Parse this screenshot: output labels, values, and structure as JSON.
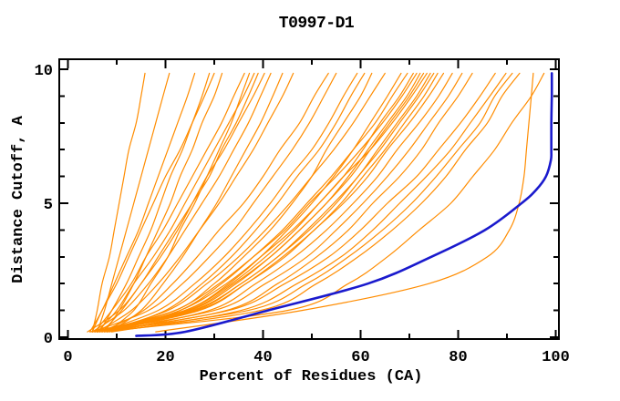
{
  "title": "T0997-D1",
  "colors": {
    "background": "#ffffff",
    "axis": "#000000",
    "model_line": "#ff8c00",
    "best_model_line": "#1a1acd"
  },
  "chart_data": {
    "type": "line",
    "title": "T0997-D1",
    "xlabel": "Percent of Residues (CA)",
    "ylabel": "Distance Cutoff, A",
    "xlim": [
      0,
      100
    ],
    "ylim": [
      0,
      10
    ],
    "grid": false,
    "legend": "none",
    "x_major_ticks": [
      0,
      20,
      40,
      60,
      80,
      100
    ],
    "x_minor_ticks": [
      10,
      30,
      50,
      70,
      90
    ],
    "y_major_ticks": [
      0,
      5,
      10
    ],
    "y_minor_ticks": [
      1,
      2,
      3,
      4,
      6,
      7,
      8,
      9
    ],
    "cutoffs": [
      0.2,
      1,
      2,
      3,
      4,
      5,
      6,
      7,
      8,
      9,
      9.85
    ],
    "series": [
      {
        "name": "model-01",
        "group": "model",
        "x": [
          5,
          6,
          7,
          8.5,
          9.5,
          10.5,
          11.5,
          12.5,
          14,
          15,
          15.8
        ]
      },
      {
        "name": "model-02",
        "group": "model",
        "x": [
          6,
          7.5,
          9,
          10.5,
          12,
          13.5,
          15,
          16.5,
          18,
          19.5,
          20.8
        ]
      },
      {
        "name": "model-03",
        "group": "model",
        "x": [
          4.5,
          7,
          9.5,
          12,
          14.5,
          16.5,
          18.5,
          20.5,
          22.5,
          24.5,
          26
        ]
      },
      {
        "name": "model-04",
        "group": "model",
        "x": [
          6.5,
          9,
          12,
          14.5,
          17,
          19,
          21,
          23.5,
          25.5,
          27.5,
          29
        ]
      },
      {
        "name": "model-05",
        "group": "model",
        "x": [
          5,
          7,
          10,
          12.5,
          15,
          17.5,
          20,
          23,
          25.5,
          28,
          30
        ]
      },
      {
        "name": "model-06",
        "group": "model",
        "x": [
          7.5,
          10.5,
          13.5,
          16,
          18.5,
          21,
          23,
          25.5,
          27.5,
          30,
          31.6
        ]
      },
      {
        "name": "model-07",
        "group": "model",
        "x": [
          5.5,
          9,
          13,
          16,
          19.5,
          22.5,
          25.5,
          28.5,
          31.5,
          34,
          36.2
        ]
      },
      {
        "name": "model-08",
        "group": "model",
        "x": [
          8,
          13.5,
          17,
          20.5,
          23,
          26,
          28.5,
          31,
          33.5,
          35.5,
          37.2
        ]
      },
      {
        "name": "model-09",
        "group": "model",
        "x": [
          6,
          10,
          13.5,
          17.5,
          21,
          24,
          27,
          30,
          33,
          36,
          38.2
        ]
      },
      {
        "name": "model-10",
        "group": "model",
        "x": [
          4,
          10.5,
          15,
          18.5,
          22,
          25.5,
          29,
          31.5,
          34.5,
          37,
          39
        ]
      },
      {
        "name": "model-11",
        "group": "model",
        "x": [
          7,
          11,
          15,
          19,
          22.5,
          25.5,
          28.5,
          32,
          35,
          38,
          40.3
        ]
      },
      {
        "name": "model-12",
        "group": "model",
        "x": [
          5,
          11.5,
          16.5,
          20.5,
          24,
          27.5,
          31,
          34,
          37,
          39.5,
          41.6
        ]
      },
      {
        "name": "model-13",
        "group": "model",
        "x": [
          8.5,
          15,
          19.5,
          23.5,
          27,
          30.5,
          33.5,
          36.5,
          39.5,
          42,
          44
        ]
      },
      {
        "name": "model-14",
        "group": "model",
        "x": [
          6,
          13,
          18.5,
          23,
          27,
          31,
          34.5,
          38,
          41,
          44,
          46.2
        ]
      },
      {
        "name": "model-15",
        "group": "model",
        "x": [
          7,
          15.5,
          21.5,
          26.5,
          31,
          36,
          40,
          43.5,
          47.5,
          50.5,
          53.4
        ]
      },
      {
        "name": "model-16",
        "group": "model",
        "x": [
          5,
          16.5,
          23.5,
          29,
          34,
          38,
          42,
          46,
          49.5,
          52.5,
          55
        ]
      },
      {
        "name": "model-17",
        "group": "model",
        "x": [
          6.5,
          18.5,
          26,
          32,
          37,
          41.5,
          45.5,
          50,
          53.5,
          56.5,
          59.3
        ]
      },
      {
        "name": "model-18",
        "group": "model",
        "x": [
          8,
          20,
          27.5,
          33.5,
          38.5,
          43,
          47,
          51.5,
          55,
          58,
          60.8
        ]
      },
      {
        "name": "model-19",
        "group": "model",
        "x": [
          5.5,
          22,
          30,
          36,
          41.5,
          46,
          50,
          53,
          56.5,
          60,
          62.3
        ]
      },
      {
        "name": "model-20",
        "group": "model",
        "x": [
          7,
          20.5,
          28.5,
          35,
          40.5,
          45.5,
          50,
          54.5,
          58.5,
          62,
          65
        ]
      },
      {
        "name": "model-21",
        "group": "model",
        "x": [
          6,
          24,
          33,
          39.5,
          45,
          50,
          54.5,
          58.5,
          62,
          65.5,
          68.3
        ]
      },
      {
        "name": "model-22",
        "group": "model",
        "x": [
          9,
          23,
          31.5,
          38,
          44,
          49,
          54,
          58.5,
          63,
          66.5,
          69.6
        ]
      },
      {
        "name": "model-23",
        "group": "model",
        "x": [
          5,
          24,
          33.5,
          40.5,
          46.5,
          51.5,
          56.5,
          60.5,
          64,
          68,
          70.8
        ]
      },
      {
        "name": "model-24",
        "group": "model",
        "x": [
          7.5,
          22,
          31,
          38,
          44.5,
          49.5,
          55,
          60,
          64.5,
          68.5,
          71.5
        ]
      },
      {
        "name": "model-25",
        "group": "model",
        "x": [
          6,
          25,
          34.5,
          41.5,
          47.5,
          53,
          57.5,
          61.5,
          65.5,
          69.5,
          72.2
        ]
      },
      {
        "name": "model-26",
        "group": "model",
        "x": [
          4.5,
          24.5,
          34,
          41.5,
          47.5,
          53,
          58,
          62,
          66,
          70,
          72.9
        ]
      },
      {
        "name": "model-27",
        "group": "model",
        "x": [
          8,
          23,
          32.5,
          39.5,
          46,
          51.5,
          56.5,
          62,
          66.5,
          70.5,
          73.6
        ]
      },
      {
        "name": "model-28",
        "group": "model",
        "x": [
          6.5,
          26,
          35.5,
          43,
          49,
          54.5,
          59.5,
          63.5,
          67.5,
          71.5,
          74.3
        ]
      },
      {
        "name": "model-29",
        "group": "model",
        "x": [
          5.5,
          25.5,
          35.5,
          43,
          49.5,
          55,
          59.5,
          64,
          68,
          72,
          75
        ]
      },
      {
        "name": "model-30",
        "group": "model",
        "x": [
          7,
          27,
          36.5,
          44,
          50.5,
          56,
          60.5,
          65,
          69,
          73,
          75.8
        ]
      },
      {
        "name": "model-31",
        "group": "model",
        "x": [
          6,
          26.5,
          36.5,
          44.5,
          50.5,
          56.5,
          61.5,
          65.5,
          70,
          74,
          77
        ]
      },
      {
        "name": "model-32",
        "group": "model",
        "x": [
          8.5,
          29,
          38.5,
          46.5,
          53,
          58.5,
          63.5,
          67.5,
          72,
          76,
          78.8
        ]
      },
      {
        "name": "model-33",
        "group": "model",
        "x": [
          5,
          30,
          40.5,
          49,
          55,
          60.5,
          65.5,
          70,
          74,
          78,
          80.8
        ]
      },
      {
        "name": "model-34",
        "group": "model",
        "x": [
          7.5,
          32.5,
          43,
          51,
          57.5,
          62.5,
          68,
          72.5,
          76,
          80,
          82.9
        ]
      },
      {
        "name": "model-35",
        "group": "model",
        "x": [
          6,
          33,
          44.5,
          53.5,
          60,
          65.5,
          71.5,
          76,
          80.5,
          84.5,
          87.6
        ]
      },
      {
        "name": "model-36",
        "group": "model",
        "x": [
          9,
          35.5,
          47,
          56,
          62.5,
          68,
          73.5,
          78.5,
          82.5,
          86.5,
          89.8
        ]
      },
      {
        "name": "model-37",
        "group": "model",
        "x": [
          5.5,
          37,
          49,
          57.5,
          64.5,
          70.5,
          75.5,
          80,
          84.5,
          87.5,
          91.1
        ]
      },
      {
        "name": "model-38",
        "group": "model",
        "x": [
          8,
          39.5,
          51,
          59.5,
          66.5,
          72.5,
          77.5,
          81.5,
          86,
          89,
          92.6
        ]
      },
      {
        "name": "model-39",
        "group": "model",
        "x": [
          18,
          48,
          74,
          86,
          90.5,
          92.5,
          93.5,
          94,
          94.5,
          95,
          95.4
        ]
      },
      {
        "name": "model-40",
        "group": "model",
        "x": [
          6.5,
          45,
          57.5,
          65.5,
          72,
          78.5,
          83,
          87.5,
          91,
          95,
          97.6
        ]
      },
      {
        "name": "best-model",
        "group": "best",
        "cutoffs": [
          0.05,
          0.2,
          1,
          2,
          3,
          4,
          5,
          5.5,
          6,
          6.6,
          7,
          8,
          9,
          9.85
        ],
        "x": [
          14,
          24,
          41,
          61.5,
          74.5,
          85.5,
          93,
          96,
          98,
          99,
          99.1,
          99.1,
          99.2,
          99.2
        ]
      }
    ]
  }
}
